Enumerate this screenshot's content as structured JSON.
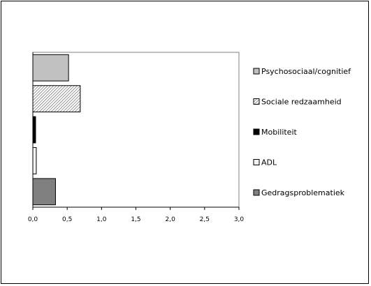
{
  "chart_data": {
    "type": "bar",
    "orientation": "horizontal",
    "categories": [
      "Psychosociaal/cognitief",
      "Sociale redzaamheid",
      "Mobiliteit",
      "ADL",
      "Gedragsproblematiek"
    ],
    "values": [
      0.52,
      0.69,
      0.04,
      0.05,
      0.33
    ],
    "title": "",
    "xlabel": "",
    "ylabel": "",
    "xlim": [
      0,
      3.0
    ],
    "x_ticks": [
      "0,0",
      "0,5",
      "1,0",
      "1,5",
      "2,0",
      "2,5",
      "3,0"
    ],
    "grid": false,
    "legend_position": "right",
    "series_styles": [
      {
        "fill": "#c0c0c0",
        "pattern": "solid"
      },
      {
        "fill": "#ffffff",
        "pattern": "diagonal-hatch"
      },
      {
        "fill": "#000000",
        "pattern": "solid"
      },
      {
        "fill": "#f4f4f4",
        "pattern": "solid"
      },
      {
        "fill": "#808080",
        "pattern": "solid"
      }
    ]
  }
}
